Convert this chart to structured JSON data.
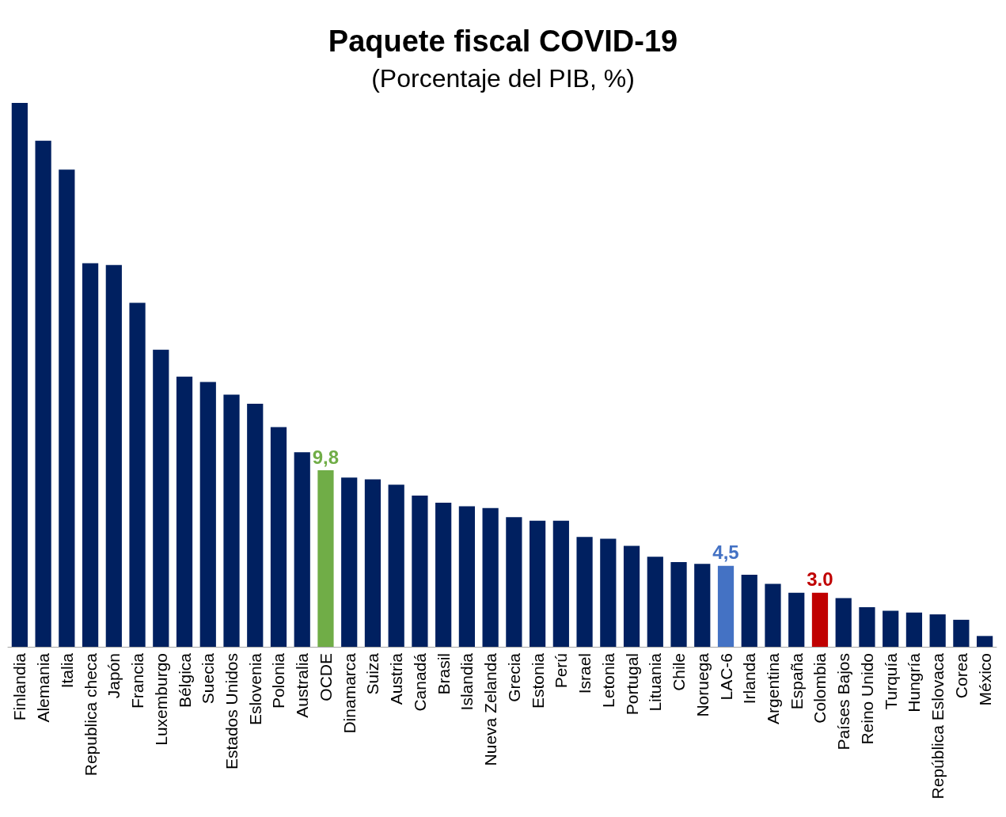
{
  "chart_data": {
    "type": "bar",
    "title": "Paquete fiscal COVID-19",
    "subtitle": "(Porcentaje del PIB, %)",
    "categories": [
      "Finlandia",
      "Alemania",
      "Italia",
      "Republica checa",
      "Japón",
      "Francia",
      "Luxemburgo",
      "Bélgica",
      "Suecia",
      "Estados Unidos",
      "Eslovenia",
      "Polonia",
      "Australia",
      "OCDE",
      "Dinamarca",
      "Suiza",
      "Austria",
      "Canadá",
      "Brasil",
      "Islandia",
      "Nueva Zelanda",
      "Grecia",
      "Estonia",
      "Perú",
      "Israel",
      "Letonia",
      "Portugal",
      "Lituania",
      "Chile",
      "Noruega",
      "LAC-6",
      "Irlanda",
      "Argentina",
      "España",
      "Colombia",
      "Países Bajos",
      "Reino Unido",
      "Turquía",
      "Hungría",
      "República Eslovaca",
      "Corea",
      "México"
    ],
    "values": [
      30.2,
      28.1,
      26.5,
      21.3,
      21.2,
      19.1,
      16.5,
      15.0,
      14.7,
      14.0,
      13.5,
      12.2,
      10.8,
      9.8,
      9.4,
      9.3,
      9.0,
      8.4,
      8.0,
      7.8,
      7.7,
      7.2,
      7.0,
      7.0,
      6.1,
      6.0,
      5.6,
      5.0,
      4.7,
      4.6,
      4.5,
      4.0,
      3.5,
      3.0,
      3.0,
      2.7,
      2.2,
      2.0,
      1.9,
      1.8,
      1.5,
      0.6
    ],
    "colors": [
      "#002060",
      "#002060",
      "#002060",
      "#002060",
      "#002060",
      "#002060",
      "#002060",
      "#002060",
      "#002060",
      "#002060",
      "#002060",
      "#002060",
      "#002060",
      "#70ad47",
      "#002060",
      "#002060",
      "#002060",
      "#002060",
      "#002060",
      "#002060",
      "#002060",
      "#002060",
      "#002060",
      "#002060",
      "#002060",
      "#002060",
      "#002060",
      "#002060",
      "#002060",
      "#002060",
      "#4472c4",
      "#002060",
      "#002060",
      "#002060",
      "#c00000",
      "#002060",
      "#002060",
      "#002060",
      "#002060",
      "#002060",
      "#002060",
      "#002060"
    ],
    "value_labels": [
      null,
      null,
      null,
      null,
      null,
      null,
      null,
      null,
      null,
      null,
      null,
      null,
      null,
      "9,8",
      null,
      null,
      null,
      null,
      null,
      null,
      null,
      null,
      null,
      null,
      null,
      null,
      null,
      null,
      null,
      null,
      "4,5",
      null,
      null,
      null,
      "3.0",
      null,
      null,
      null,
      null,
      null,
      null,
      null
    ],
    "ylim": [
      0,
      30.2
    ],
    "tick_labels": "x",
    "grid": false
  }
}
